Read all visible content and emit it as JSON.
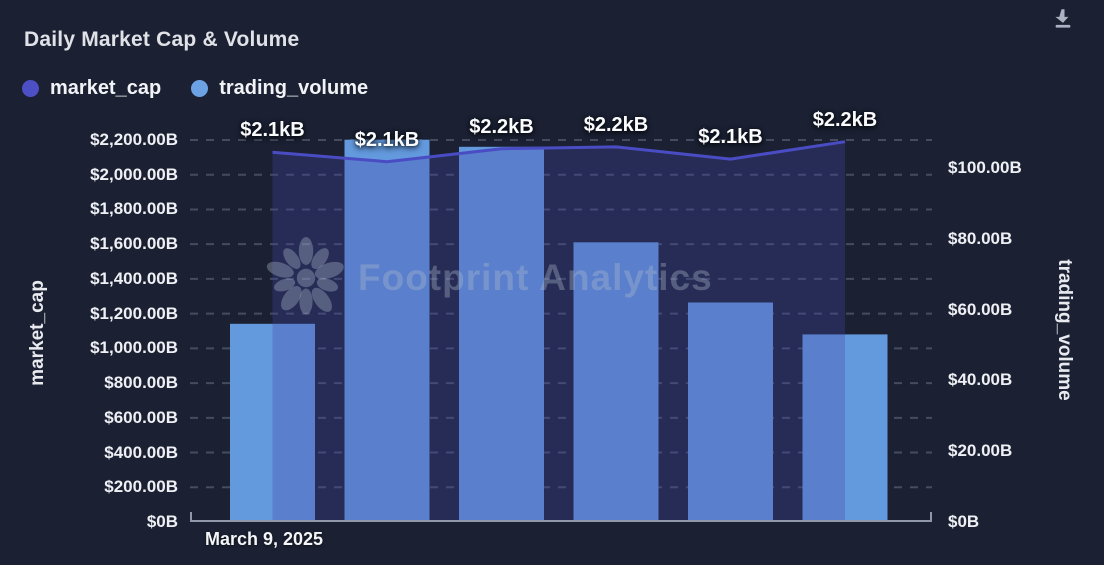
{
  "header": {
    "title": "Daily Market Cap & Volume"
  },
  "toolbar": {
    "download_icon": "download-icon"
  },
  "legend": {
    "items": [
      {
        "label": "market_cap",
        "color": "#4d4fc4"
      },
      {
        "label": "trading_volume",
        "color": "#6ca2e4"
      }
    ]
  },
  "watermark": {
    "logo": "footprint-flower-icon",
    "text": "Footprint Analytics"
  },
  "colors": {
    "background": "#1b2133",
    "bar": "#6399dd",
    "line": "#4a4cc4",
    "area": "#4145a8",
    "area_opacity": 0.3,
    "grid": "rgba(158,168,190,0.32)",
    "axis": "#9097a8",
    "icon": "#aab1c0"
  },
  "chart_data": {
    "type": "combo",
    "title": "Daily Market Cap & Volume",
    "x_first_label": "March 9, 2025",
    "categories_visible": [
      "March 9, 2025"
    ],
    "legend_position": "top-left",
    "grid": {
      "horizontal_dashed": true
    },
    "series": [
      {
        "name": "market_cap",
        "type": "area-line",
        "axis": "left",
        "unit": "B",
        "values": [
          2130,
          2075,
          2150,
          2160,
          2090,
          2190
        ],
        "point_labels": [
          "$2.1kB",
          "$2.1kB",
          "$2.2kB",
          "$2.2kB",
          "$2.1kB",
          "$2.2kB"
        ]
      },
      {
        "name": "trading_volume",
        "type": "bar",
        "axis": "right",
        "unit": "B",
        "values": [
          56,
          108,
          106,
          79,
          62,
          53
        ]
      }
    ],
    "left_axis": {
      "name": "market_cap",
      "min": 0,
      "max": 2200,
      "step": 200,
      "tick_labels": [
        "$2,200.00B",
        "$2,000.00B",
        "$1,800.00B",
        "$1,600.00B",
        "$1,400.00B",
        "$1,200.00B",
        "$1,000.00B",
        "$800.00B",
        "$600.00B",
        "$400.00B",
        "$200.00B",
        "$0B"
      ]
    },
    "right_axis": {
      "name": "trading_volume",
      "min": 0,
      "max": 100,
      "step": 20,
      "tick_labels": [
        "$100.00B",
        "$80.00B",
        "$60.00B",
        "$40.00B",
        "$20.00B",
        "$0B"
      ]
    }
  }
}
